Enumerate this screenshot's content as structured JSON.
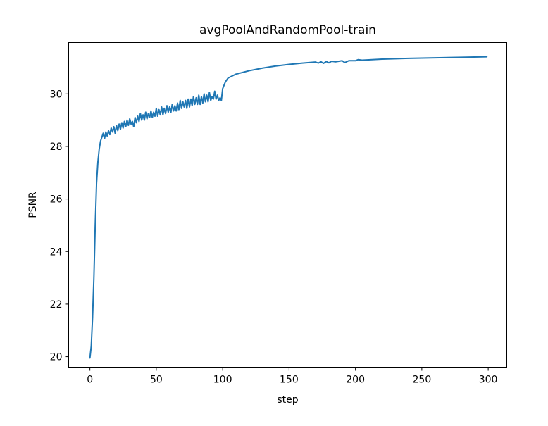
{
  "chart_data": {
    "type": "line",
    "title": "avgPoolAndRandomPool-train",
    "xlabel": "step",
    "ylabel": "PSNR",
    "xlim": [
      -16,
      314
    ],
    "ylim": [
      19.6,
      31.95
    ],
    "xticks": [
      0,
      50,
      100,
      150,
      200,
      250,
      300
    ],
    "yticks": [
      20,
      22,
      24,
      26,
      28,
      30
    ],
    "grid": false,
    "legend": "none",
    "colors": {
      "series": "#1f77b4"
    },
    "series": [
      {
        "x": [
          0,
          1,
          2,
          3,
          4,
          5,
          6,
          7,
          8,
          9,
          10,
          11,
          12,
          13,
          14,
          15,
          16,
          17,
          18,
          19,
          20,
          21,
          22,
          23,
          24,
          25,
          26,
          27,
          28,
          29,
          30,
          31,
          32,
          33,
          34,
          35,
          36,
          37,
          38,
          39,
          40,
          41,
          42,
          43,
          44,
          45,
          46,
          47,
          48,
          49,
          50,
          51,
          52,
          53,
          54,
          55,
          56,
          57,
          58,
          59,
          60,
          61,
          62,
          63,
          64,
          65,
          66,
          67,
          68,
          69,
          70,
          71,
          72,
          73,
          74,
          75,
          76,
          77,
          78,
          79,
          80,
          81,
          82,
          83,
          84,
          85,
          86,
          87,
          88,
          89,
          90,
          91,
          92,
          93,
          94,
          95,
          96,
          97,
          98,
          99,
          100,
          102,
          104,
          106,
          110,
          120,
          130,
          140,
          150,
          160,
          170,
          172,
          174,
          176,
          178,
          180,
          182,
          185,
          190,
          192,
          195,
          200,
          202,
          205,
          220,
          240,
          260,
          280,
          299
        ],
        "y": [
          19.95,
          20.4,
          21.5,
          23.0,
          25.0,
          26.6,
          27.4,
          27.9,
          28.2,
          28.35,
          28.5,
          28.3,
          28.55,
          28.4,
          28.6,
          28.45,
          28.7,
          28.55,
          28.75,
          28.5,
          28.8,
          28.6,
          28.85,
          28.65,
          28.9,
          28.7,
          28.95,
          28.75,
          29.0,
          28.8,
          29.05,
          28.85,
          28.95,
          28.75,
          29.1,
          28.9,
          29.15,
          28.95,
          29.25,
          29.0,
          29.2,
          29.0,
          29.3,
          29.05,
          29.25,
          29.1,
          29.35,
          29.1,
          29.3,
          29.15,
          29.45,
          29.15,
          29.4,
          29.2,
          29.5,
          29.2,
          29.45,
          29.25,
          29.55,
          29.3,
          29.5,
          29.3,
          29.6,
          29.35,
          29.55,
          29.35,
          29.65,
          29.4,
          29.75,
          29.45,
          29.7,
          29.5,
          29.75,
          29.45,
          29.8,
          29.5,
          29.8,
          29.55,
          29.9,
          29.6,
          29.85,
          29.6,
          29.95,
          29.6,
          29.9,
          29.65,
          30.0,
          29.7,
          29.95,
          29.7,
          30.05,
          29.75,
          29.9,
          29.8,
          30.1,
          29.8,
          29.95,
          29.75,
          29.85,
          29.75,
          30.2,
          30.45,
          30.6,
          30.65,
          30.75,
          30.88,
          30.98,
          31.06,
          31.12,
          31.17,
          31.21,
          31.17,
          31.22,
          31.16,
          31.23,
          31.18,
          31.24,
          31.22,
          31.26,
          31.19,
          31.26,
          31.26,
          31.3,
          31.28,
          31.32,
          31.35,
          31.37,
          31.39,
          31.41
        ]
      }
    ]
  }
}
